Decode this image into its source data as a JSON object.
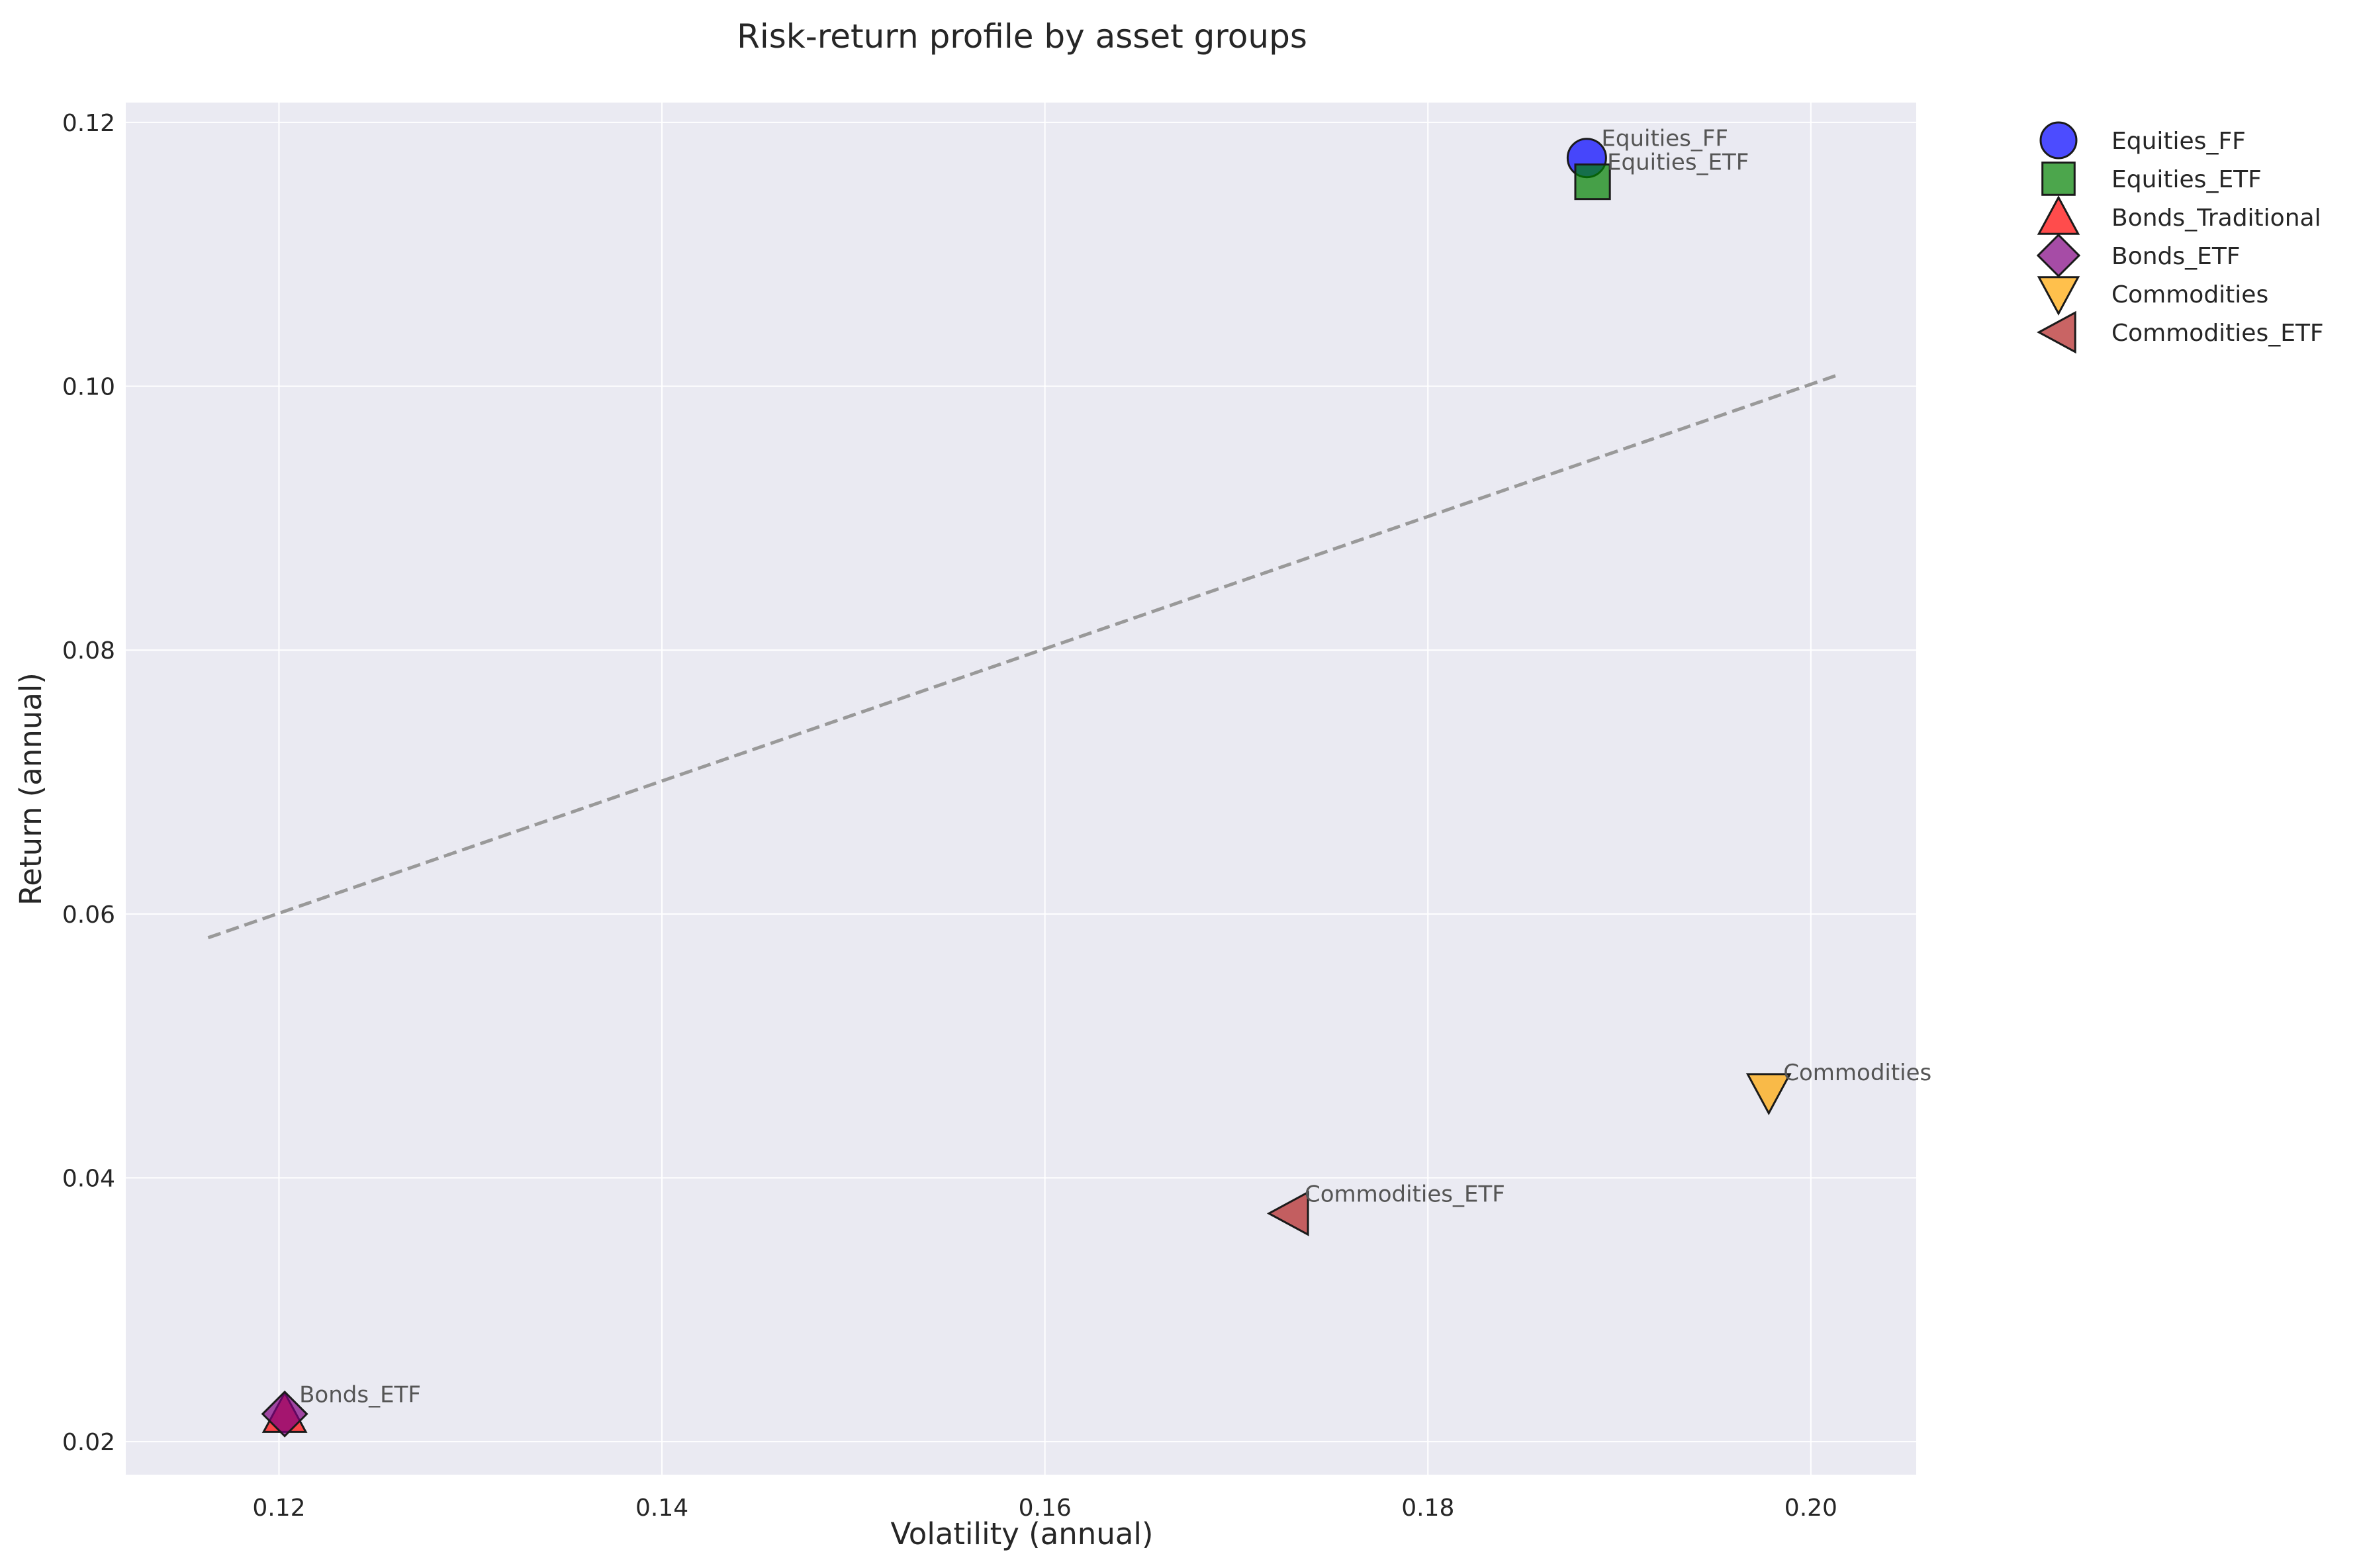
{
  "chart_data": {
    "type": "scatter",
    "title": "Risk-return profile by asset groups",
    "xlabel": "Volatility (annual)",
    "ylabel": "Return (annual)",
    "xlim": [
      0.112,
      0.2055
    ],
    "ylim": [
      0.0175,
      0.1215
    ],
    "xticks": [
      0.12,
      0.14,
      0.16,
      0.18,
      0.2
    ],
    "xtick_labels": [
      "0.12",
      "0.14",
      "0.16",
      "0.18",
      "0.20"
    ],
    "yticks": [
      0.02,
      0.04,
      0.06,
      0.08,
      0.1,
      0.12
    ],
    "ytick_labels": [
      "0.02",
      "0.04",
      "0.06",
      "0.08",
      "0.10",
      "0.12"
    ],
    "grid": true,
    "legend_position": "outside-top-right",
    "background": "#eaeaf2",
    "series": [
      {
        "name": "Equities_FF",
        "label": "Equities_FF",
        "x": 0.1883,
        "y": 0.1173,
        "marker": "circle",
        "color": "#0000ff"
      },
      {
        "name": "Equities_ETF",
        "label": "Equities_ETF",
        "x": 0.1886,
        "y": 0.1155,
        "marker": "square",
        "color": "#008000"
      },
      {
        "name": "Bonds_Traditional",
        "label": "Bonds_Traditional",
        "x": 0.1203,
        "y": 0.0221,
        "marker": "triangle-up",
        "color": "#ff0000"
      },
      {
        "name": "Bonds_ETF",
        "label": "Bonds_ETF",
        "x": 0.1203,
        "y": 0.0221,
        "marker": "diamond",
        "color": "#800080"
      },
      {
        "name": "Commodities",
        "label": "Commodities",
        "x": 0.1978,
        "y": 0.0465,
        "marker": "triangle-down",
        "color": "#ffa500"
      },
      {
        "name": "Commodities_ETF",
        "label": "Commodities_ETF",
        "x": 0.1728,
        "y": 0.0373,
        "marker": "triangle-left",
        "color": "#b22222"
      }
    ],
    "trend_line": {
      "x": [
        0.1163,
        0.2015
      ],
      "y": [
        0.0582,
        0.1009
      ],
      "color": "#999999",
      "style": "dashed"
    }
  }
}
